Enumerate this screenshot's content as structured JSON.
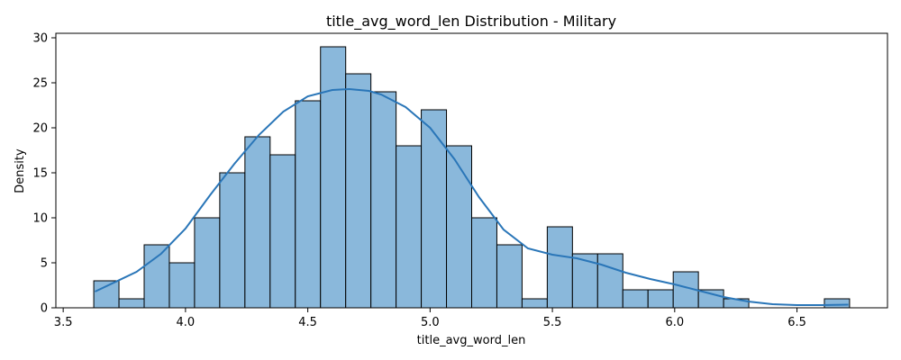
{
  "chart_data": {
    "type": "bar",
    "subtype": "histogram-with-kde",
    "title": "title_avg_word_len Distribution - Military",
    "xlabel": "title_avg_word_len",
    "ylabel": "Density",
    "xlim": [
      3.47,
      6.87
    ],
    "ylim": [
      0,
      30.5
    ],
    "xticks": [
      3.5,
      4.0,
      4.5,
      5.0,
      5.5,
      6.0,
      6.5
    ],
    "xtick_labels": [
      "3.5",
      "4.0",
      "4.5",
      "5.0",
      "5.5",
      "6.0",
      "6.5"
    ],
    "yticks": [
      0,
      5,
      10,
      15,
      20,
      25,
      30
    ],
    "ytick_labels": [
      "0",
      "5",
      "10",
      "15",
      "20",
      "25",
      "30"
    ],
    "bin_start": 3.625,
    "bin_width": 0.103,
    "values": [
      3,
      1,
      7,
      5,
      10,
      15,
      19,
      17,
      23,
      29,
      26,
      24,
      18,
      22,
      18,
      10,
      7,
      1,
      9,
      6,
      6,
      2,
      2,
      4,
      2,
      1,
      0,
      0,
      0,
      1
    ],
    "kde_x": [
      3.63,
      3.8,
      3.9,
      4.0,
      4.1,
      4.2,
      4.3,
      4.4,
      4.5,
      4.6,
      4.67,
      4.75,
      4.8,
      4.9,
      5.0,
      5.1,
      5.2,
      5.3,
      5.4,
      5.5,
      5.6,
      5.7,
      5.8,
      5.9,
      6.0,
      6.1,
      6.2,
      6.3,
      6.4,
      6.5,
      6.6,
      6.71
    ],
    "kde_y": [
      1.8,
      4.0,
      6.0,
      8.8,
      12.5,
      16.0,
      19.2,
      21.8,
      23.5,
      24.2,
      24.3,
      24.1,
      23.7,
      22.3,
      20.0,
      16.5,
      12.3,
      8.7,
      6.6,
      5.9,
      5.5,
      4.8,
      3.9,
      3.2,
      2.6,
      1.9,
      1.2,
      0.7,
      0.4,
      0.3,
      0.3,
      0.35
    ],
    "bar_color": "#8ab8db",
    "bar_edge_color": "#000000",
    "line_color": "#2a76b8",
    "grid": false,
    "legend": "none"
  }
}
